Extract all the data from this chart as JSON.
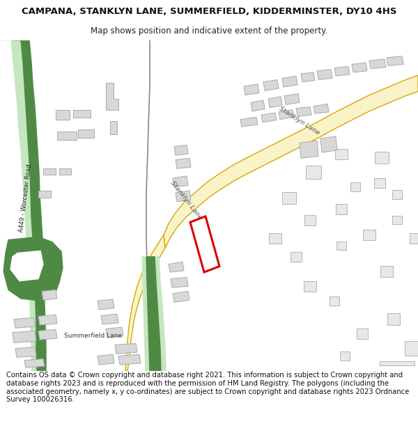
{
  "title": "CAMPANA, STANKLYN LANE, SUMMERFIELD, KIDDERMINSTER, DY10 4HS",
  "subtitle": "Map shows position and indicative extent of the property.",
  "footer": "Contains OS data © Crown copyright and database right 2021. This information is subject to Crown copyright and database rights 2023 and is reproduced with the permission of HM Land Registry. The polygons (including the associated geometry, namely x, y co-ordinates) are subject to Crown copyright and database rights 2023 Ordnance Survey 100026316.",
  "bg_color": "#ffffff",
  "map_bg": "#ffffff",
  "road_yellow_fill": "#faf3c8",
  "road_yellow_border": "#d4a800",
  "road_green_light": "#c5e6c0",
  "road_green_dark": "#4f8a45",
  "building_color": "#d8d8d8",
  "building_edge": "#aaaaaa",
  "text_road": "#444444",
  "text_label": "#333333",
  "title_fontsize": 9.5,
  "subtitle_fontsize": 8.5,
  "footer_fontsize": 7.2
}
